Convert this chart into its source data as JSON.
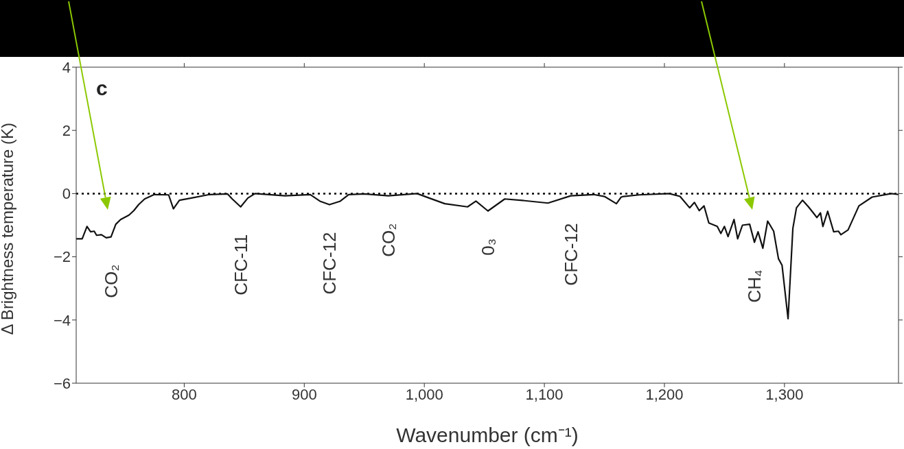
{
  "chart_data": {
    "type": "line",
    "xlabel": "Wavenumber (cm⁻¹)",
    "ylabel": "Δ Brightness temperature (K)",
    "xlim": [
      710,
      1395
    ],
    "xticks": [
      {
        "value": 800,
        "label": "800"
      },
      {
        "value": 900,
        "label": "900"
      },
      {
        "value": 1000,
        "label": "1,000"
      },
      {
        "value": 1100,
        "label": "1,100"
      },
      {
        "value": 1200,
        "label": "1,200"
      },
      {
        "value": 1300,
        "label": "1,300"
      }
    ],
    "ylim": [
      -6,
      4
    ],
    "yticks": [
      -6,
      -4,
      -2,
      0,
      2,
      4
    ],
    "grid": false,
    "legend": false,
    "marker": "none",
    "line_style": "solid",
    "ref_lines": [
      {
        "axis": "y",
        "value": 0,
        "color": "#000000",
        "line_style": "dotted"
      }
    ],
    "annotations": [
      "c",
      {
        "text": "CO₂",
        "x": 739,
        "y": -1.37
      },
      {
        "text": "CFC-11",
        "x": 847,
        "y": -0.42
      },
      {
        "text": "CFC-12",
        "x": 921,
        "y": -0.35
      },
      {
        "text": "CO₂",
        "x": 970,
        "y": -0.07
      },
      {
        "text": "0₃",
        "x": 1053,
        "y": -0.55
      },
      {
        "text": "CFC-12",
        "x": 1122,
        "y": -0.07
      },
      {
        "text": "CH₄",
        "x": 1275,
        "y": -1.54
      }
    ],
    "series": [
      {
        "color": "#111111",
        "x": [
          710,
          715,
          719,
          722,
          725,
          727,
          731,
          735,
          739,
          743,
          747,
          754,
          758,
          762,
          767,
          775,
          787,
          791,
          796,
          806,
          821,
          836,
          840,
          847,
          853,
          859,
          884,
          905,
          913,
          921,
          930,
          937,
          950,
          970,
          994,
          1004,
          1017,
          1036,
          1043,
          1053,
          1067,
          1080,
          1103,
          1122,
          1141,
          1150,
          1160,
          1164,
          1166,
          1179,
          1204,
          1213,
          1221,
          1225,
          1229,
          1233,
          1237,
          1244,
          1247,
          1250,
          1253,
          1258,
          1261,
          1265,
          1271,
          1275,
          1278,
          1282,
          1286,
          1291,
          1295,
          1298,
          1303,
          1307,
          1310,
          1315,
          1320,
          1324,
          1327,
          1330,
          1332,
          1336,
          1341,
          1345,
          1347,
          1353,
          1362,
          1373,
          1389,
          1395
        ],
        "values": [
          -1.43,
          -1.43,
          -1.04,
          -1.21,
          -1.19,
          -1.32,
          -1.3,
          -1.4,
          -1.37,
          -0.97,
          -0.82,
          -0.68,
          -0.54,
          -0.35,
          -0.17,
          -0.03,
          -0.04,
          -0.48,
          -0.21,
          -0.14,
          -0.03,
          -0.01,
          -0.17,
          -0.42,
          -0.14,
          0,
          -0.07,
          -0.03,
          -0.24,
          -0.35,
          -0.24,
          -0.03,
          -0.01,
          -0.07,
          0,
          -0.14,
          -0.32,
          -0.42,
          -0.24,
          -0.55,
          -0.17,
          -0.21,
          -0.3,
          -0.07,
          -0.03,
          -0.09,
          -0.32,
          -0.11,
          -0.09,
          -0.04,
          0,
          -0.09,
          -0.45,
          -0.28,
          -0.54,
          -0.39,
          -0.93,
          -1.04,
          -1.26,
          -1.04,
          -1.36,
          -0.82,
          -1.43,
          -1.0,
          -0.97,
          -1.54,
          -1.21,
          -1.73,
          -0.87,
          -1.19,
          -2.06,
          -2.27,
          -3.96,
          -1.1,
          -0.45,
          -0.21,
          -0.42,
          -0.61,
          -0.76,
          -0.61,
          -1.04,
          -0.56,
          -1.21,
          -1.19,
          -1.3,
          -1.15,
          -0.39,
          -0.11,
          0,
          -0.03
        ]
      }
    ]
  }
}
